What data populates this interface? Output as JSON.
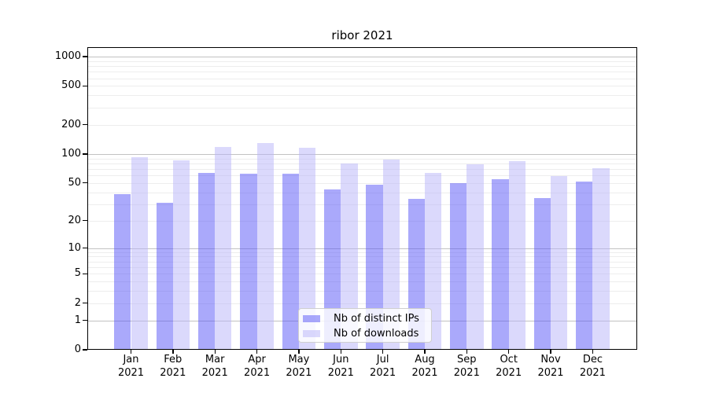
{
  "title": "ribor 2021",
  "chart_data": {
    "type": "bar",
    "title": "ribor 2021",
    "categories": [
      "Jan 2021",
      "Feb 2021",
      "Mar 2021",
      "Apr 2021",
      "May 2021",
      "Jun 2021",
      "Jul 2021",
      "Aug 2021",
      "Sep 2021",
      "Oct 2021",
      "Nov 2021",
      "Dec 2021"
    ],
    "month_line1": [
      "Jan",
      "Feb",
      "Mar",
      "Apr",
      "May",
      "Jun",
      "Jul",
      "Aug",
      "Sep",
      "Oct",
      "Nov",
      "Dec"
    ],
    "month_line2": [
      "2021",
      "2021",
      "2021",
      "2021",
      "2021",
      "2021",
      "2021",
      "2021",
      "2021",
      "2021",
      "2021",
      "2021"
    ],
    "series": [
      {
        "name": "Nb of distinct IPs",
        "values": [
          38,
          31,
          64,
          63,
          63,
          43,
          48,
          34,
          50,
          55,
          35,
          52
        ],
        "fill": "rgba(85,83,247,0.5)"
      },
      {
        "name": "Nb of downloads",
        "values": [
          92,
          86,
          119,
          130,
          115,
          80,
          88,
          64,
          78,
          84,
          59,
          71
        ],
        "fill": "rgba(183,179,249,0.5)"
      }
    ],
    "yscale": "log1p",
    "ylim": [
      0,
      1250
    ],
    "yticks": [
      1000,
      500,
      200,
      100,
      50,
      20,
      10,
      5,
      2,
      1,
      0
    ],
    "grid": true,
    "legend_position": "lower center"
  },
  "colors": {
    "major_grid": "#c2c2c2",
    "minor_grid": "#ededed",
    "axis": "#000000",
    "series1_fill": "rgba(85,83,247,0.5)",
    "series2_fill": "rgba(183,179,249,0.5)"
  }
}
